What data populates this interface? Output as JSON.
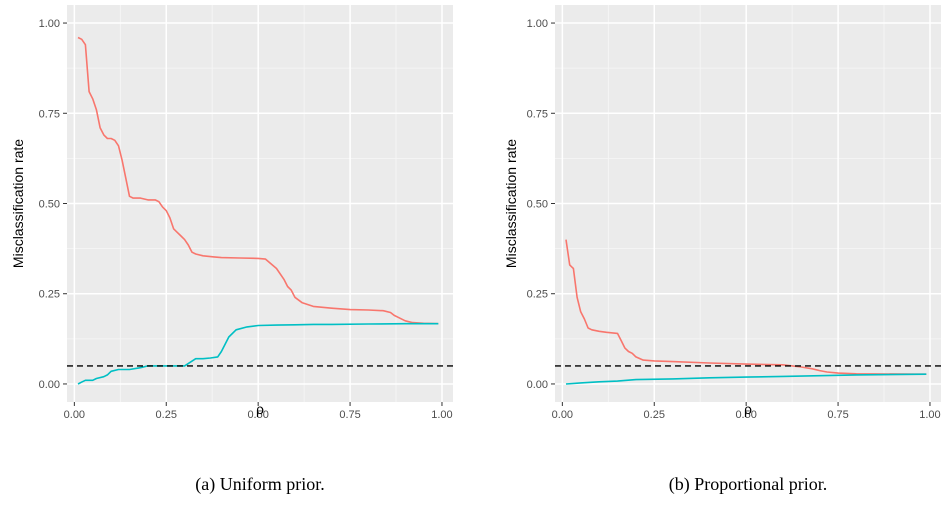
{
  "chart_data": [
    {
      "type": "line",
      "caption": "(a) Uniform prior.",
      "xlabel": "ρ",
      "ylabel": "Misclassification rate",
      "xlim": [
        -0.02,
        1.03
      ],
      "ylim": [
        -0.05,
        1.05
      ],
      "x_ticks": [
        "0.00",
        "0.25",
        "0.50",
        "0.75",
        "1.00"
      ],
      "y_ticks": [
        "0.00",
        "0.25",
        "0.50",
        "0.75",
        "1.00"
      ],
      "grid": true,
      "reference_line": {
        "y": 0.05,
        "style": "dashed",
        "color": "#000000"
      },
      "series": [
        {
          "color": "#F8766D",
          "x": [
            0.01,
            0.02,
            0.03,
            0.04,
            0.05,
            0.06,
            0.07,
            0.08,
            0.09,
            0.1,
            0.11,
            0.12,
            0.13,
            0.14,
            0.15,
            0.16,
            0.18,
            0.2,
            0.22,
            0.23,
            0.24,
            0.25,
            0.26,
            0.27,
            0.28,
            0.29,
            0.3,
            0.31,
            0.32,
            0.33,
            0.35,
            0.38,
            0.4,
            0.45,
            0.5,
            0.52,
            0.55,
            0.57,
            0.58,
            0.59,
            0.6,
            0.62,
            0.65,
            0.7,
            0.75,
            0.8,
            0.84,
            0.86,
            0.87,
            0.88,
            0.9,
            0.92,
            0.95,
            0.99
          ],
          "y": [
            0.96,
            0.955,
            0.94,
            0.81,
            0.79,
            0.76,
            0.71,
            0.69,
            0.68,
            0.68,
            0.675,
            0.66,
            0.62,
            0.57,
            0.52,
            0.515,
            0.515,
            0.51,
            0.51,
            0.505,
            0.49,
            0.48,
            0.46,
            0.43,
            0.42,
            0.41,
            0.4,
            0.385,
            0.365,
            0.36,
            0.355,
            0.352,
            0.35,
            0.349,
            0.348,
            0.346,
            0.32,
            0.29,
            0.27,
            0.26,
            0.24,
            0.225,
            0.215,
            0.21,
            0.206,
            0.205,
            0.203,
            0.198,
            0.19,
            0.185,
            0.175,
            0.17,
            0.168,
            0.167
          ]
        },
        {
          "color": "#00BFC4",
          "x": [
            0.01,
            0.02,
            0.03,
            0.05,
            0.06,
            0.08,
            0.09,
            0.1,
            0.12,
            0.15,
            0.18,
            0.2,
            0.22,
            0.25,
            0.28,
            0.3,
            0.33,
            0.35,
            0.37,
            0.39,
            0.4,
            0.42,
            0.44,
            0.47,
            0.5,
            0.55,
            0.6,
            0.65,
            0.7,
            0.8,
            0.9,
            0.99
          ],
          "y": [
            0.0,
            0.005,
            0.01,
            0.01,
            0.015,
            0.02,
            0.025,
            0.035,
            0.04,
            0.04,
            0.045,
            0.05,
            0.05,
            0.05,
            0.05,
            0.05,
            0.07,
            0.07,
            0.072,
            0.075,
            0.09,
            0.13,
            0.15,
            0.158,
            0.162,
            0.163,
            0.164,
            0.165,
            0.165,
            0.166,
            0.167,
            0.167
          ]
        }
      ]
    },
    {
      "type": "line",
      "caption": "(b) Proportional prior.",
      "xlabel": "ρ",
      "ylabel": "Misclassification rate",
      "xlim": [
        -0.02,
        1.03
      ],
      "ylim": [
        -0.05,
        1.05
      ],
      "x_ticks": [
        "0.00",
        "0.25",
        "0.50",
        "0.75",
        "1.00"
      ],
      "y_ticks": [
        "0.00",
        "0.25",
        "0.50",
        "0.75",
        "1.00"
      ],
      "grid": true,
      "reference_line": {
        "y": 0.05,
        "style": "dashed",
        "color": "#000000"
      },
      "series": [
        {
          "color": "#F8766D",
          "x": [
            0.01,
            0.02,
            0.025,
            0.03,
            0.04,
            0.05,
            0.06,
            0.07,
            0.08,
            0.1,
            0.12,
            0.15,
            0.16,
            0.17,
            0.18,
            0.19,
            0.2,
            0.22,
            0.25,
            0.3,
            0.4,
            0.5,
            0.6,
            0.65,
            0.68,
            0.7,
            0.72,
            0.75,
            0.8,
            0.99
          ],
          "y": [
            0.4,
            0.33,
            0.325,
            0.32,
            0.24,
            0.2,
            0.18,
            0.155,
            0.15,
            0.146,
            0.143,
            0.14,
            0.12,
            0.1,
            0.09,
            0.085,
            0.075,
            0.066,
            0.064,
            0.062,
            0.058,
            0.055,
            0.053,
            0.047,
            0.042,
            0.037,
            0.033,
            0.03,
            0.028,
            0.027
          ]
        },
        {
          "color": "#00BFC4",
          "x": [
            0.01,
            0.05,
            0.1,
            0.15,
            0.2,
            0.3,
            0.4,
            0.5,
            0.6,
            0.7,
            0.8,
            0.99
          ],
          "y": [
            0.0,
            0.003,
            0.006,
            0.008,
            0.012,
            0.014,
            0.017,
            0.019,
            0.021,
            0.023,
            0.025,
            0.027
          ]
        }
      ]
    }
  ]
}
